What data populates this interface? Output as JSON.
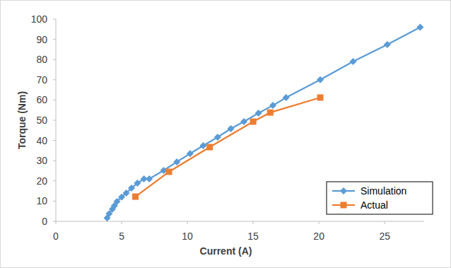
{
  "chart_data": {
    "type": "line",
    "x_label": "Current (A)",
    "y_label": "Torque (Nm)",
    "xlim": [
      0,
      28
    ],
    "xticks": [
      0,
      5,
      10,
      15,
      20,
      25
    ],
    "ylim": [
      0,
      100
    ],
    "yticks": [
      0,
      10,
      20,
      30,
      40,
      50,
      60,
      70,
      80,
      90,
      100
    ],
    "grid": false,
    "legend": "lower right",
    "series": [
      {
        "name": "Simulation",
        "color": "#5b9bd5",
        "marker": "diamond",
        "line_style": "solid",
        "x": [
          3.9,
          4.05,
          4.3,
          4.45,
          4.65,
          5.0,
          5.35,
          5.75,
          6.2,
          6.7,
          7.1,
          8.2,
          9.2,
          10.2,
          11.2,
          12.3,
          13.3,
          14.3,
          15.4,
          16.5,
          17.5,
          20.1,
          22.6,
          25.2,
          27.7
        ],
        "values": [
          1.7,
          3.8,
          6.0,
          7.7,
          9.8,
          12.0,
          14.0,
          16.4,
          18.9,
          21.0,
          21.0,
          25.2,
          29.4,
          33.5,
          37.4,
          41.6,
          45.8,
          49.3,
          53.5,
          57.3,
          61.2,
          70.0,
          79.0,
          87.4,
          96.0
        ]
      },
      {
        "name": "Actual",
        "color": "#ed7d31",
        "marker": "square",
        "line_style": "solid",
        "x": [
          6.05,
          8.6,
          11.7,
          15.0,
          16.3,
          20.1
        ],
        "values": [
          12.2,
          24.5,
          36.7,
          49.3,
          53.8,
          61.2
        ]
      }
    ]
  }
}
